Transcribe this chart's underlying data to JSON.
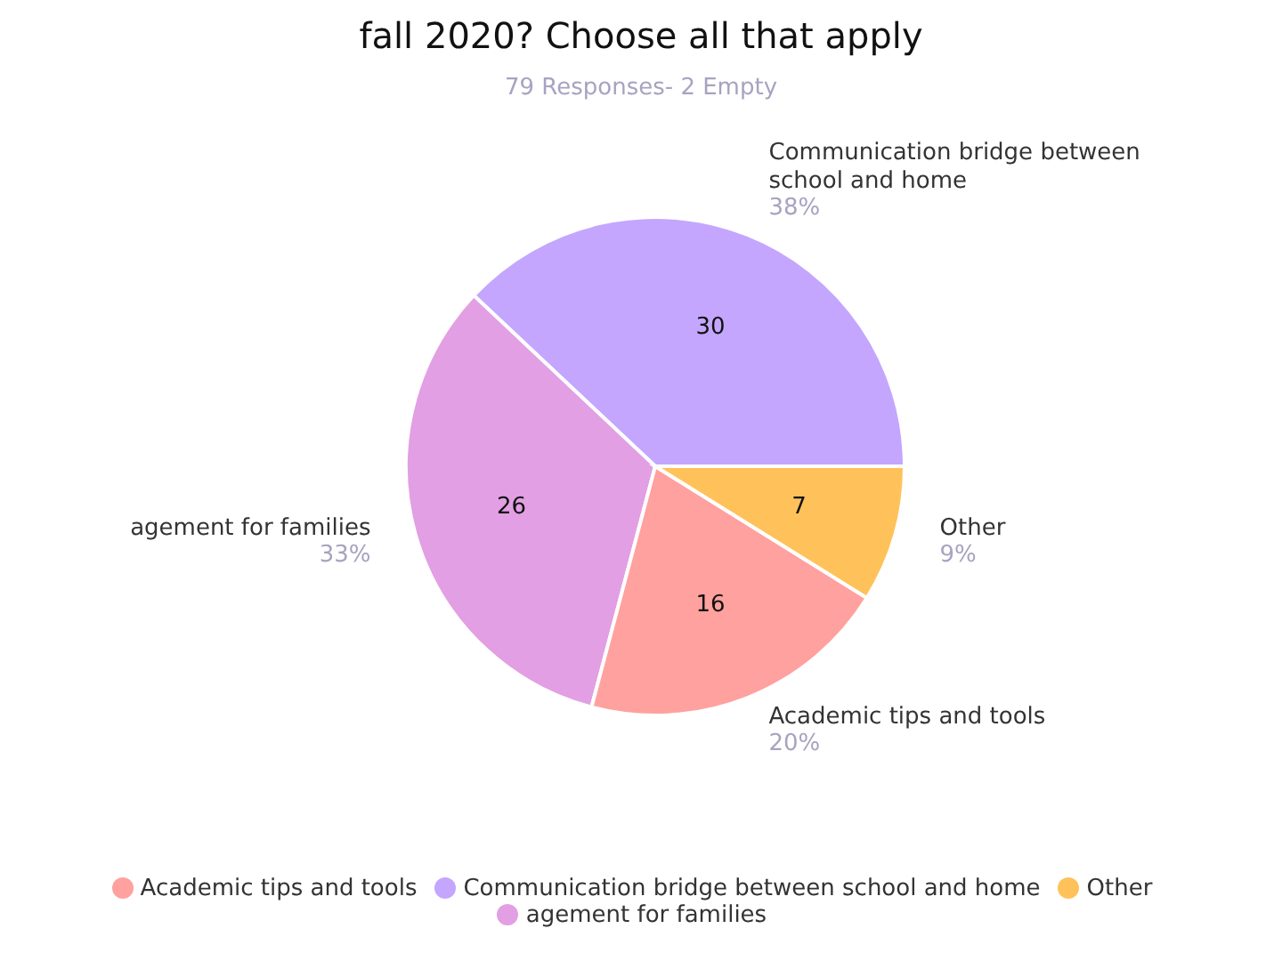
{
  "chart_data": {
    "type": "pie",
    "title": "fall 2020? Choose all that apply",
    "subtitle": "79 Responses- 2 Empty",
    "categories": [
      "Communication bridge between school and home",
      "agement for families",
      "Academic tips and tools",
      "Other"
    ],
    "values": [
      30,
      26,
      16,
      7
    ],
    "annotations": [
      "38%",
      "33%",
      "20%",
      "9%"
    ],
    "colors": [
      "#c4a6ff",
      "#e29fe3",
      "#ffa19e",
      "#ffc25a"
    ],
    "data_labels": true,
    "legend": "bottom"
  }
}
